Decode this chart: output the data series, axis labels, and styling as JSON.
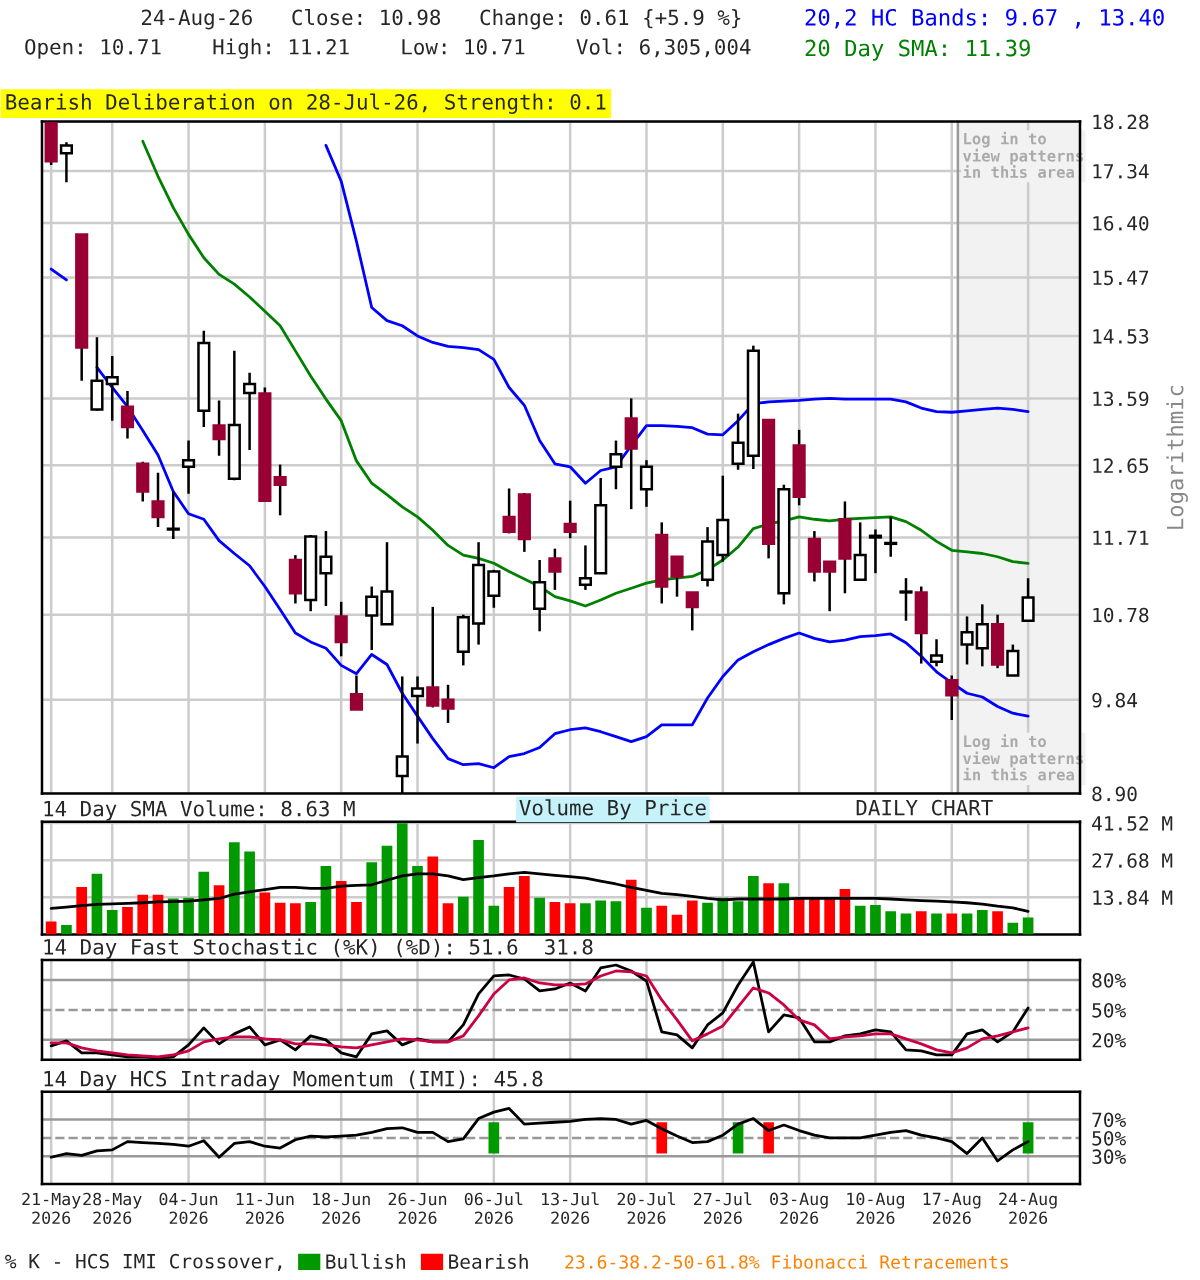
{
  "chart_data": [
    {
      "type": "candlestick",
      "categories": [
        "21-May\n2026",
        null,
        null,
        null,
        "28-May\n2026",
        null,
        null,
        null,
        null,
        "04-Jun\n2026",
        null,
        null,
        null,
        null,
        "11-Jun\n2026",
        null,
        null,
        null,
        null,
        "18-Jun\n2026",
        null,
        null,
        null,
        null,
        "26-Jun\n2026",
        null,
        null,
        null,
        null,
        "06-Jul\n2026",
        null,
        null,
        null,
        null,
        "13-Jul\n2026",
        null,
        null,
        null,
        null,
        "20-Jul\n2026",
        null,
        null,
        null,
        null,
        "27-Jul\n2026",
        null,
        null,
        null,
        null,
        "03-Aug\n2026",
        null,
        null,
        null,
        null,
        "10-Aug\n2026",
        null,
        null,
        null,
        null,
        "17-Aug\n2026",
        null,
        null,
        null,
        null,
        "24-Aug\n2026"
      ],
      "ohlc": [
        [
          18.25,
          18.28,
          17.45,
          17.52
        ],
        [
          17.67,
          17.88,
          17.13,
          17.82
        ],
        [
          16.2,
          16.2,
          13.85,
          14.35
        ],
        [
          13.43,
          14.51,
          13.41,
          13.85
        ],
        [
          13.8,
          14.22,
          13.27,
          13.9
        ],
        [
          13.47,
          13.7,
          13.02,
          13.18
        ],
        [
          12.67,
          12.7,
          12.17,
          12.3
        ],
        [
          12.17,
          12.55,
          11.84,
          11.97
        ],
        [
          11.81,
          12.3,
          11.69,
          11.82
        ],
        [
          12.63,
          12.99,
          12.27,
          12.72
        ],
        [
          13.41,
          14.61,
          13.18,
          14.42
        ],
        [
          13.2,
          13.56,
          12.78,
          13.01
        ],
        [
          12.47,
          14.3,
          12.45,
          13.21
        ],
        [
          13.67,
          13.97,
          12.86,
          13.8
        ],
        [
          13.66,
          13.75,
          12.18,
          12.18
        ],
        [
          12.49,
          12.66,
          11.99,
          12.39
        ],
        [
          11.43,
          11.49,
          10.91,
          11.03
        ],
        [
          10.95,
          11.74,
          10.82,
          11.72
        ],
        [
          11.27,
          11.79,
          10.88,
          11.47
        ],
        [
          10.76,
          10.93,
          10.31,
          10.47
        ],
        [
          9.9,
          10.1,
          9.74,
          9.74
        ],
        [
          10.77,
          11.11,
          10.38,
          10.99
        ],
        [
          10.67,
          11.65,
          10.67,
          11.05
        ],
        [
          9.07,
          10.09,
          8.9,
          9.26
        ],
        [
          9.88,
          10.09,
          9.39,
          9.96
        ],
        [
          9.97,
          10.87,
          9.76,
          9.78
        ],
        [
          9.84,
          10.0,
          9.6,
          9.75
        ],
        [
          10.36,
          10.78,
          10.21,
          10.75
        ],
        [
          10.68,
          11.65,
          10.44,
          11.37
        ],
        [
          11.0,
          11.31,
          10.86,
          11.29
        ],
        [
          11.97,
          12.34,
          11.76,
          11.78
        ],
        [
          12.26,
          12.28,
          11.53,
          11.69
        ],
        [
          10.85,
          11.43,
          10.59,
          11.16
        ],
        [
          11.45,
          11.57,
          11.07,
          11.29
        ],
        [
          11.88,
          12.18,
          11.7,
          11.78
        ],
        [
          11.13,
          11.61,
          11.07,
          11.21
        ],
        [
          11.27,
          12.48,
          11.27,
          12.12
        ],
        [
          12.63,
          12.99,
          12.33,
          12.8
        ],
        [
          13.3,
          13.59,
          12.07,
          12.88
        ],
        [
          12.33,
          12.72,
          12.1,
          12.63
        ],
        [
          11.74,
          11.9,
          10.91,
          11.11
        ],
        [
          11.47,
          11.47,
          10.99,
          11.23
        ],
        [
          11.04,
          11.04,
          10.6,
          10.87
        ],
        [
          11.19,
          11.84,
          11.11,
          11.66
        ],
        [
          11.49,
          12.51,
          11.41,
          11.93
        ],
        [
          12.67,
          13.37,
          12.59,
          12.96
        ],
        [
          12.78,
          14.38,
          12.6,
          14.3
        ],
        [
          13.28,
          13.28,
          11.45,
          11.63
        ],
        [
          11.03,
          12.39,
          10.9,
          12.33
        ],
        [
          12.92,
          13.14,
          12.12,
          12.23
        ],
        [
          11.69,
          11.79,
          11.17,
          11.29
        ],
        [
          11.41,
          11.41,
          10.82,
          11.29
        ],
        [
          11.94,
          12.17,
          11.03,
          11.45
        ],
        [
          11.19,
          11.9,
          11.19,
          11.49
        ],
        [
          11.71,
          11.81,
          11.27,
          11.73
        ],
        [
          11.63,
          11.97,
          11.47,
          11.64
        ],
        [
          11.04,
          11.21,
          10.71,
          11.05
        ],
        [
          11.04,
          11.11,
          10.23,
          10.57
        ],
        [
          10.25,
          10.5,
          10.2,
          10.32
        ],
        [
          10.05,
          10.1,
          9.63,
          9.89
        ],
        [
          10.44,
          10.76,
          10.22,
          10.58
        ],
        [
          10.4,
          10.9,
          10.2,
          10.67
        ],
        [
          10.67,
          10.78,
          10.18,
          10.22
        ],
        [
          10.1,
          10.44,
          10.1,
          10.37
        ],
        [
          10.71,
          11.21,
          10.71,
          10.98
        ]
      ],
      "colors": [
        "#990033",
        "#ffffff",
        "#990033",
        "#ffffff",
        "#ffffff",
        "#990033",
        "#990033",
        "#990033",
        "#ffffff",
        "#ffffff",
        "#ffffff",
        "#990033",
        "#ffffff",
        "#ffffff",
        "#990033",
        "#990033",
        "#990033",
        "#ffffff",
        "#ffffff",
        "#990033",
        "#990033",
        "#ffffff",
        "#ffffff",
        "#ffffff",
        "#ffffff",
        "#990033",
        "#990033",
        "#ffffff",
        "#ffffff",
        "#ffffff",
        "#990033",
        "#990033",
        "#ffffff",
        "#990033",
        "#990033",
        "#ffffff",
        "#ffffff",
        "#ffffff",
        "#990033",
        "#ffffff",
        "#990033",
        "#990033",
        "#990033",
        "#ffffff",
        "#ffffff",
        "#ffffff",
        "#ffffff",
        "#990033",
        "#ffffff",
        "#990033",
        "#990033",
        "#990033",
        "#990033",
        "#ffffff",
        "#ffffff",
        "#ffffff",
        "#ffffff",
        "#990033",
        "#ffffff",
        "#990033",
        "#ffffff",
        "#ffffff",
        "#990033",
        "#ffffff",
        "#ffffff"
      ],
      "series": [
        {
          "type": "line",
          "name": "20,2 HC Bands: 9.67 , 13.40",
          "color": "#0000ff",
          "values": [
            null,
            null,
            null,
            null,
            null,
            null,
            null,
            null,
            null,
            null,
            null,
            null,
            null,
            null,
            null,
            null,
            null,
            null,
            17.82,
            17.15,
            16.08,
            14.98,
            14.77,
            14.69,
            14.53,
            14.43,
            14.37,
            14.35,
            14.32,
            14.17,
            13.75,
            13.49,
            12.99,
            12.67,
            12.63,
            12.41,
            12.58,
            12.63,
            12.92,
            13.2,
            13.2,
            13.19,
            13.17,
            13.08,
            13.07,
            13.27,
            13.51,
            13.54,
            13.55,
            13.56,
            13.58,
            13.59,
            13.58,
            13.58,
            13.58,
            13.58,
            13.54,
            13.45,
            13.4,
            13.39,
            13.41,
            13.43,
            13.45,
            13.43,
            13.4
          ]
        },
        {
          "type": "line",
          "color": "#0000ff",
          "values": [
            15.61,
            15.43,
            null,
            14.05,
            13.75,
            13.47,
            13.13,
            12.79,
            12.3,
            12.01,
            11.94,
            11.67,
            11.51,
            11.36,
            11.11,
            10.84,
            10.57,
            10.47,
            10.4,
            10.21,
            10.12,
            10.33,
            10.22,
            9.91,
            9.67,
            9.44,
            9.24,
            9.18,
            9.19,
            9.15,
            9.26,
            9.29,
            9.35,
            9.49,
            9.53,
            9.55,
            9.51,
            9.46,
            9.41,
            9.46,
            9.58,
            9.58,
            9.58,
            9.86,
            10.09,
            10.27,
            10.36,
            10.44,
            10.51,
            10.57,
            10.51,
            10.47,
            10.49,
            10.53,
            10.54,
            10.56,
            10.46,
            10.31,
            10.14,
            10.02,
            9.91,
            9.87,
            9.77,
            9.7,
            9.67
          ]
        },
        {
          "type": "line",
          "name": "20 Day SMA: 11.39",
          "color": "#008000",
          "values": [
            null,
            null,
            null,
            null,
            null,
            null,
            17.9,
            17.24,
            16.67,
            16.2,
            15.8,
            15.52,
            15.36,
            15.15,
            14.92,
            14.69,
            14.3,
            13.92,
            13.58,
            13.27,
            12.71,
            12.41,
            12.26,
            12.1,
            11.97,
            11.8,
            11.61,
            11.49,
            11.45,
            11.39,
            11.29,
            11.2,
            11.11,
            10.99,
            10.94,
            10.88,
            10.95,
            11.03,
            11.09,
            11.15,
            11.19,
            11.21,
            11.23,
            11.31,
            11.43,
            11.59,
            11.82,
            11.88,
            11.92,
            11.97,
            11.94,
            11.92,
            11.94,
            11.95,
            11.96,
            11.97,
            11.91,
            11.8,
            11.66,
            11.55,
            11.53,
            11.51,
            11.47,
            11.41,
            11.39
          ]
        }
      ],
      "log": true,
      "ylim": [
        8.9,
        18.28
      ],
      "yticks": [
        {
          "value": 8.9,
          "label": "8.90"
        },
        9.84,
        10.78,
        11.71,
        12.65,
        13.59,
        14.53,
        15.47,
        {
          "value": 16.4,
          "label": "16.40"
        },
        17.34,
        18.28
      ],
      "ylabel": "Logarithmic",
      "grid": true,
      "legend": "top right",
      "tick_labels": "y",
      "bands": [
        {
          "axis": "x",
          "from": "17-Aug\n2026",
          "to": "24-Aug\n2026",
          "color": "#f2f2f2"
        }
      ],
      "annotations": [
        "24-Aug-26   Close: 10.98   Change: 0.61 {+5.9 %}",
        "Open: 10.71    High: 11.21    Low: 10.71    Vol: 6,305,004",
        "Bearish Deliberation on 28-Jul-26, Strength: 0.1",
        "Log in to\nview patterns\nin this area",
        "Log in to\nview patterns\nin this area"
      ]
    },
    {
      "type": "bar",
      "title": "14 Day SMA Volume: 8.63 M",
      "categories": [
        "21-May\n2026",
        null,
        null,
        null,
        "28-May\n2026",
        null,
        null,
        null,
        null,
        "04-Jun\n2026",
        null,
        null,
        null,
        null,
        "11-Jun\n2026",
        null,
        null,
        null,
        null,
        "18-Jun\n2026",
        null,
        null,
        null,
        null,
        "26-Jun\n2026",
        null,
        null,
        null,
        null,
        "06-Jul\n2026",
        null,
        null,
        null,
        null,
        "13-Jul\n2026",
        null,
        null,
        null,
        null,
        "20-Jul\n2026",
        null,
        null,
        null,
        null,
        "27-Jul\n2026",
        null,
        null,
        null,
        null,
        "03-Aug\n2026",
        null,
        null,
        null,
        null,
        "10-Aug\n2026",
        null,
        null,
        null,
        null,
        "17-Aug\n2026",
        null,
        null,
        null,
        null,
        "24-Aug\n2026"
      ],
      "series": [
        {
          "values": [
            4.8,
            3.5,
            17.7,
            22.6,
            9.1,
            10.2,
            14.8,
            14.8,
            13.4,
            13.7,
            23.4,
            18.3,
            34.4,
            30.9,
            15.6,
            11.8,
            11.6,
            12.1,
            25.5,
            19.9,
            12.1,
            26.9,
            33.1,
            41.4,
            25.5,
            29.0,
            11.6,
            14.0,
            35.2,
            10.7,
            17.7,
            21.8,
            13.7,
            12.1,
            11.6,
            11.6,
            12.6,
            12.4,
            20.4,
            9.9,
            10.7,
            7.3,
            12.6,
            11.8,
            13.7,
            12.4,
            21.8,
            19.1,
            19.1,
            13.7,
            13.7,
            13.7,
            16.9,
            10.7,
            11.0,
            8.6,
            7.8,
            8.6,
            7.8,
            7.8,
            7.8,
            9.1,
            8.6,
            4.3,
            6.3
          ],
          "colors": [
            "#ff0000",
            "#009900",
            "#ff0000",
            "#009900",
            "#009900",
            "#ff0000",
            "#ff0000",
            "#ff0000",
            "#009900",
            "#009900",
            "#009900",
            "#ff0000",
            "#009900",
            "#009900",
            "#ff0000",
            "#ff0000",
            "#ff0000",
            "#009900",
            "#009900",
            "#ff0000",
            "#ff0000",
            "#009900",
            "#009900",
            "#009900",
            "#009900",
            "#ff0000",
            "#ff0000",
            "#009900",
            "#009900",
            "#009900",
            "#ff0000",
            "#ff0000",
            "#009900",
            "#ff0000",
            "#ff0000",
            "#009900",
            "#009900",
            "#009900",
            "#ff0000",
            "#009900",
            "#ff0000",
            "#ff0000",
            "#ff0000",
            "#009900",
            "#009900",
            "#009900",
            "#009900",
            "#ff0000",
            "#009900",
            "#ff0000",
            "#ff0000",
            "#ff0000",
            "#ff0000",
            "#009900",
            "#009900",
            "#009900",
            "#009900",
            "#ff0000",
            "#009900",
            "#ff0000",
            "#009900",
            "#009900",
            "#ff0000",
            "#009900",
            "#009900"
          ]
        },
        {
          "type": "line",
          "color": "#000000",
          "values": [
            9.7,
            10.2,
            10.7,
            11.2,
            11.4,
            11.6,
            11.8,
            12.1,
            12.2,
            12.4,
            12.9,
            13.4,
            15.0,
            15.9,
            16.7,
            17.5,
            17.5,
            17.2,
            17.2,
            18.0,
            18.3,
            18.5,
            20.2,
            21.8,
            22.6,
            22.6,
            21.8,
            20.4,
            21.2,
            21.8,
            22.6,
            23.1,
            22.6,
            22.0,
            21.5,
            21.0,
            19.9,
            18.8,
            17.5,
            16.4,
            15.3,
            14.8,
            14.2,
            13.4,
            12.9,
            13.2,
            13.2,
            13.2,
            13.2,
            13.4,
            13.4,
            13.4,
            13.4,
            13.4,
            13.4,
            13.2,
            12.9,
            12.6,
            12.4,
            12.1,
            11.8,
            11.3,
            10.5,
            9.9,
            8.6
          ]
        }
      ],
      "ylim": [
        0,
        42
      ],
      "yticks": [
        {
          "value": 13.84,
          "label": "13.84 M"
        },
        {
          "value": 27.68,
          "label": "27.68 M"
        },
        {
          "value": 41.52,
          "label": "41.52 M"
        }
      ],
      "grid": true,
      "tick_labels": "y",
      "annotations": [
        "Volume By Price",
        "DAILY CHART"
      ]
    },
    {
      "type": "line",
      "title": "14 Day Fast Stochastic (%K) (%D): 51.6  31.8",
      "categories": [
        "21-May\n2026",
        null,
        null,
        null,
        "28-May\n2026",
        null,
        null,
        null,
        null,
        "04-Jun\n2026",
        null,
        null,
        null,
        null,
        "11-Jun\n2026",
        null,
        null,
        null,
        null,
        "18-Jun\n2026",
        null,
        null,
        null,
        null,
        "26-Jun\n2026",
        null,
        null,
        null,
        null,
        "06-Jul\n2026",
        null,
        null,
        null,
        null,
        "13-Jul\n2026",
        null,
        null,
        null,
        null,
        "20-Jul\n2026",
        null,
        null,
        null,
        null,
        "27-Jul\n2026",
        null,
        null,
        null,
        null,
        "03-Aug\n2026",
        null,
        null,
        null,
        null,
        "10-Aug\n2026",
        null,
        null,
        null,
        null,
        "17-Aug\n2026",
        null,
        null,
        null,
        null,
        "24-Aug\n2026"
      ],
      "series": [
        {
          "color": "#000000",
          "values": [
            14,
            19,
            7,
            7,
            5,
            3,
            3,
            2,
            3,
            15,
            32,
            16,
            26,
            33,
            15,
            20,
            10,
            24,
            20,
            7,
            3,
            26,
            29,
            15,
            21,
            18,
            18,
            35,
            66,
            84,
            85,
            81,
            69,
            71,
            77,
            69,
            92,
            95,
            89,
            79,
            28,
            25,
            12,
            35,
            47,
            75,
            98,
            28,
            45,
            42,
            18,
            18,
            24,
            26,
            30,
            28,
            10,
            9,
            5,
            5,
            26,
            30,
            18,
            28,
            52
          ]
        },
        {
          "color": "#cc0044",
          "values": [
            17,
            17,
            12,
            9,
            7,
            5,
            4,
            3,
            5,
            9,
            18,
            21,
            23,
            23,
            21,
            20,
            16,
            16,
            15,
            13,
            12,
            15,
            18,
            21,
            20,
            18,
            18,
            24,
            44,
            66,
            80,
            82,
            77,
            75,
            75,
            76,
            84,
            89,
            88,
            84,
            60,
            40,
            19,
            26,
            34,
            53,
            72,
            67,
            55,
            40,
            35,
            21,
            23,
            24,
            26,
            26,
            21,
            16,
            10,
            7,
            12,
            21,
            24,
            28,
            32
          ]
        }
      ],
      "ylim": [
        0,
        100
      ],
      "yticks": [
        {
          "value": 20,
          "label": "20%"
        },
        {
          "value": 50,
          "label": "50%"
        },
        {
          "value": 80,
          "label": "80%"
        }
      ],
      "grid": "x",
      "tick_labels": "y",
      "ref_lines": [
        {
          "axis": "y",
          "value": 20,
          "color": "#999999"
        },
        {
          "axis": "y",
          "value": 50,
          "color": "#999999",
          "line_style": "dashed"
        },
        {
          "axis": "y",
          "value": 80,
          "color": "#999999"
        }
      ]
    },
    {
      "type": "line",
      "title": "14 Day HCS Intraday Momentum (IMI): 45.8",
      "categories": [
        "21-May\n2026",
        null,
        null,
        null,
        "28-May\n2026",
        null,
        null,
        null,
        null,
        "04-Jun\n2026",
        null,
        null,
        null,
        null,
        "11-Jun\n2026",
        null,
        null,
        null,
        null,
        "18-Jun\n2026",
        null,
        null,
        null,
        null,
        "26-Jun\n2026",
        null,
        null,
        null,
        null,
        "06-Jul\n2026",
        null,
        null,
        null,
        null,
        "13-Jul\n2026",
        null,
        null,
        null,
        null,
        "20-Jul\n2026",
        null,
        null,
        null,
        null,
        "27-Jul\n2026",
        null,
        null,
        null,
        null,
        "03-Aug\n2026",
        null,
        null,
        null,
        null,
        "10-Aug\n2026",
        null,
        null,
        null,
        null,
        "17-Aug\n2026",
        null,
        null,
        null,
        null,
        "24-Aug\n2026"
      ],
      "series": [
        {
          "color": "#000000",
          "values": [
            29,
            33,
            31,
            36,
            37,
            46,
            45,
            44,
            43,
            41,
            47,
            29,
            44,
            46,
            41,
            39,
            48,
            52,
            51,
            52,
            53,
            56,
            60,
            61,
            56,
            56,
            46,
            49,
            71,
            78,
            82,
            65,
            66,
            67,
            68,
            70,
            71,
            70,
            65,
            69,
            60,
            52,
            45,
            46,
            53,
            65,
            71,
            58,
            64,
            58,
            53,
            50,
            50,
            50,
            53,
            56,
            58,
            53,
            50,
            46,
            33,
            50,
            25,
            37,
            46
          ]
        },
        {
          "type": "bar",
          "name": "Bullish",
          "color": "#009900",
          "values": [
            null,
            null,
            null,
            null,
            null,
            null,
            null,
            null,
            null,
            null,
            null,
            null,
            null,
            null,
            null,
            null,
            null,
            null,
            null,
            null,
            null,
            null,
            null,
            null,
            null,
            null,
            null,
            null,
            null,
            34,
            null,
            null,
            null,
            null,
            null,
            null,
            null,
            null,
            null,
            null,
            null,
            null,
            null,
            null,
            null,
            34,
            null,
            null,
            null,
            null,
            null,
            null,
            null,
            null,
            null,
            null,
            null,
            null,
            null,
            null,
            null,
            null,
            null,
            null,
            34
          ],
          "base": [
            null,
            null,
            null,
            null,
            null,
            null,
            null,
            null,
            null,
            null,
            null,
            null,
            null,
            null,
            null,
            null,
            null,
            null,
            null,
            null,
            null,
            null,
            null,
            null,
            null,
            null,
            null,
            null,
            null,
            33,
            null,
            null,
            null,
            null,
            null,
            null,
            null,
            null,
            null,
            null,
            null,
            null,
            null,
            null,
            null,
            33,
            null,
            null,
            null,
            null,
            null,
            null,
            null,
            null,
            null,
            null,
            null,
            null,
            null,
            null,
            null,
            null,
            null,
            null,
            33
          ]
        },
        {
          "type": "bar",
          "name": "Bearish",
          "color": "#ff0000",
          "values": [
            null,
            null,
            null,
            null,
            null,
            null,
            null,
            null,
            null,
            null,
            null,
            null,
            null,
            null,
            null,
            null,
            null,
            null,
            null,
            null,
            null,
            null,
            null,
            null,
            null,
            null,
            null,
            null,
            null,
            null,
            null,
            null,
            null,
            null,
            null,
            null,
            null,
            null,
            null,
            null,
            34,
            null,
            null,
            null,
            null,
            null,
            null,
            34,
            null,
            null,
            null,
            null,
            null,
            null,
            null,
            null,
            null,
            null,
            null,
            null,
            null,
            null,
            null,
            null,
            null
          ],
          "base": [
            null,
            null,
            null,
            null,
            null,
            null,
            null,
            null,
            null,
            null,
            null,
            null,
            null,
            null,
            null,
            null,
            null,
            null,
            null,
            null,
            null,
            null,
            null,
            null,
            null,
            null,
            null,
            null,
            null,
            null,
            null,
            null,
            null,
            null,
            null,
            null,
            null,
            null,
            null,
            null,
            33,
            null,
            null,
            null,
            null,
            null,
            null,
            33,
            null,
            null,
            null,
            null,
            null,
            null,
            null,
            null,
            null,
            null,
            null,
            null,
            null,
            null,
            null,
            null,
            null
          ]
        }
      ],
      "ylim": [
        0,
        100
      ],
      "yticks": [
        {
          "value": 30,
          "label": "30%"
        },
        {
          "value": 50,
          "label": "50%"
        },
        {
          "value": 70,
          "label": "70%"
        }
      ],
      "grid": "x",
      "legend": "bottom",
      "legend_title": "% K - HCS IMI Crossover,",
      "ref_lines": [
        {
          "axis": "y",
          "value": 30,
          "color": "#999999"
        },
        {
          "axis": "y",
          "value": 50,
          "color": "#999999",
          "line_style": "dashed"
        },
        {
          "axis": "y",
          "value": 70,
          "color": "#999999"
        }
      ],
      "annotations": [
        "23.6-38.2-50-61.8% Fibonacci Retracements"
      ]
    }
  ]
}
